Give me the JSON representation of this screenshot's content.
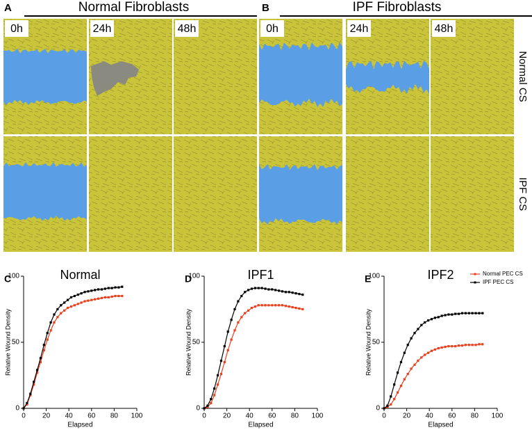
{
  "figure": {
    "panels": [
      {
        "letter": "A",
        "title": "Normal Fibroblasts",
        "timepoints": [
          "0h",
          "24h",
          "48h"
        ]
      },
      {
        "letter": "B",
        "title": "IPF Fibroblasts",
        "timepoints": [
          "0h",
          "24h",
          "48h"
        ]
      }
    ],
    "rows": [
      "Normal CS",
      "IPF CS"
    ]
  },
  "chart_data": [
    {
      "type": "line",
      "panel": "C",
      "title": "Normal",
      "x_label": "Elapsed",
      "y_label": "Relative  Wound  Density",
      "xlim": [
        0,
        100
      ],
      "ylim": [
        0,
        100
      ],
      "xticks": [
        0,
        20,
        40,
        60,
        80,
        100
      ],
      "yticks": [
        0,
        50,
        100
      ],
      "x": [
        0,
        3,
        6,
        9,
        12,
        15,
        18,
        21,
        24,
        27,
        30,
        33,
        36,
        39,
        42,
        45,
        48,
        51,
        54,
        57,
        60,
        63,
        66,
        69,
        72,
        75,
        78,
        81,
        84,
        87
      ],
      "series": [
        {
          "color": "#e8401c",
          "values": [
            0,
            3,
            10,
            18,
            27,
            35,
            44,
            52,
            59,
            65,
            69,
            72,
            74,
            76,
            77,
            78,
            79,
            80,
            81,
            81.5,
            82,
            82.5,
            83,
            83.5,
            84,
            84,
            84.5,
            85,
            85,
            85
          ]
        },
        {
          "color": "#000000",
          "values": [
            0,
            4,
            11,
            20,
            29,
            38,
            48,
            57,
            65,
            71,
            75,
            78,
            80,
            82,
            84,
            85,
            86,
            87,
            88,
            88.5,
            89,
            89.5,
            90,
            90,
            90.5,
            91,
            91,
            91.5,
            91.5,
            92
          ]
        }
      ]
    },
    {
      "type": "line",
      "panel": "D",
      "title": "IPF1",
      "x_label": "Elapsed",
      "y_label": "Relative  Wound  Density",
      "xlim": [
        0,
        100
      ],
      "ylim": [
        0,
        100
      ],
      "xticks": [
        0,
        20,
        40,
        60,
        80,
        100
      ],
      "yticks": [
        0,
        50,
        100
      ],
      "x": [
        0,
        3,
        6,
        9,
        12,
        15,
        18,
        21,
        24,
        27,
        30,
        33,
        36,
        39,
        42,
        45,
        48,
        51,
        54,
        57,
        60,
        63,
        66,
        69,
        72,
        75,
        78,
        81,
        84,
        87
      ],
      "series": [
        {
          "color": "#e8401c",
          "values": [
            0,
            1,
            4,
            10,
            18,
            26,
            35,
            44,
            52,
            59,
            65,
            69,
            72,
            74,
            76,
            77,
            78,
            78,
            78,
            78,
            78,
            78,
            78,
            78,
            77.5,
            77,
            76.5,
            76,
            75.5,
            75
          ]
        },
        {
          "color": "#000000",
          "values": [
            0,
            2,
            7,
            15,
            25,
            36,
            47,
            58,
            67,
            75,
            81,
            85,
            88,
            89.5,
            90.5,
            91,
            91,
            91,
            90.5,
            90,
            90,
            89.5,
            89,
            88.5,
            88,
            88,
            87.5,
            87,
            86.5,
            86
          ]
        }
      ]
    },
    {
      "type": "line",
      "panel": "E",
      "title": "IPF2",
      "x_label": "Elapsed",
      "y_label": "Relative  Wound  Density",
      "xlim": [
        0,
        100
      ],
      "ylim": [
        0,
        100
      ],
      "xticks": [
        0,
        20,
        40,
        60,
        80,
        100
      ],
      "yticks": [
        0,
        50,
        100
      ],
      "legend": "upper right",
      "x": [
        0,
        3,
        6,
        9,
        12,
        15,
        18,
        21,
        24,
        27,
        30,
        33,
        36,
        39,
        42,
        45,
        48,
        51,
        54,
        57,
        60,
        63,
        66,
        69,
        72,
        75,
        78,
        81,
        84,
        87
      ],
      "series": [
        {
          "name": "Normal PEC CS",
          "color": "#e8401c",
          "values": [
            0,
            1,
            3,
            7,
            12,
            17,
            22,
            26,
            30,
            33,
            36,
            38.5,
            40.5,
            42,
            43.5,
            44.5,
            45.5,
            46,
            46.5,
            47,
            47,
            47,
            47.5,
            47.5,
            48,
            48,
            48,
            48,
            48.5,
            48.5
          ]
        },
        {
          "name": "IPF PEC CS",
          "color": "#000000",
          "values": [
            0,
            2,
            9,
            18,
            27,
            35,
            42,
            48,
            53,
            57,
            60,
            63,
            65,
            66.5,
            67.5,
            68.5,
            69,
            70,
            70.5,
            71,
            71,
            71.5,
            71.5,
            72,
            72,
            72,
            72,
            72,
            72,
            72
          ]
        }
      ]
    }
  ]
}
